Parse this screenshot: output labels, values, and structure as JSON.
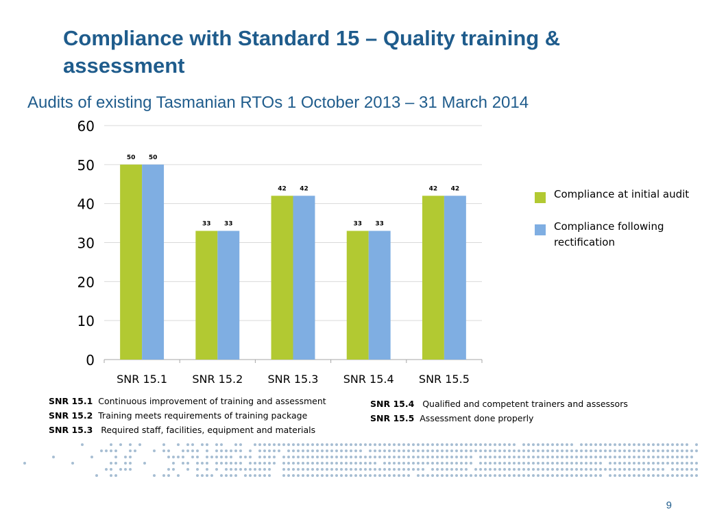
{
  "slide": {
    "title": "Compliance with Standard 15 – Quality training & assessment",
    "subtitle": "Audits of existing Tasmanian RTOs 1 October 2013 – 31 March 2014",
    "page_number": "9"
  },
  "legend": [
    {
      "label": "Compliance at initial audit",
      "color": "#b2c932"
    },
    {
      "label": "Compliance following rectification",
      "color": "#7faee2"
    }
  ],
  "definitions_left": [
    {
      "code": "SNR 15.1",
      "text": "Continuous improvement of training and assessment"
    },
    {
      "code": "SNR 15.2",
      "text": "Training meets requirements of training package"
    },
    {
      "code": "SNR 15.3",
      "text": "Required staff, facilities, equipment and materials"
    }
  ],
  "definitions_right": [
    {
      "code": "SNR 15.4",
      "text": "Qualified and competent trainers and assessors"
    },
    {
      "code": "SNR 15.5",
      "text": "Assessment done properly"
    }
  ],
  "chart_data": {
    "type": "bar",
    "categories": [
      "SNR 15.1",
      "SNR 15.2",
      "SNR 15.3",
      "SNR 15.4",
      "SNR 15.5"
    ],
    "series": [
      {
        "name": "Compliance at initial audit",
        "values": [
          50,
          33,
          42,
          33,
          42
        ],
        "color": "#b2c932"
      },
      {
        "name": "Compliance following rectification",
        "values": [
          50,
          33,
          42,
          33,
          42
        ],
        "color": "#7faee2"
      }
    ],
    "ylim": [
      0,
      60
    ],
    "yticks": [
      0,
      10,
      20,
      30,
      40,
      50,
      60
    ],
    "grid": true,
    "legend_position": "right",
    "data_labels": true
  }
}
